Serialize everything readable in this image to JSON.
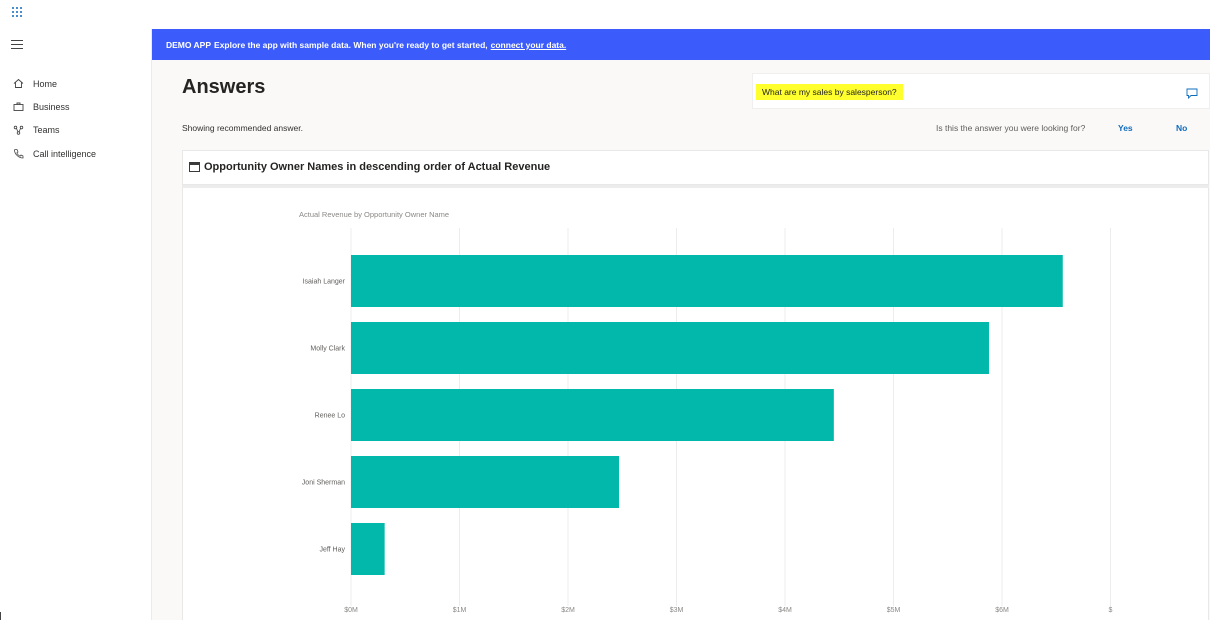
{
  "nav": {
    "items": [
      {
        "label": "Home",
        "icon": "home-icon"
      },
      {
        "label": "Business",
        "icon": "briefcase-icon"
      },
      {
        "label": "Teams",
        "icon": "teams-icon"
      },
      {
        "label": "Call intelligence",
        "icon": "phone-icon"
      }
    ]
  },
  "banner": {
    "tag": "DEMO APP",
    "message": "Explore the app with sample data. When you're ready to get started,",
    "link": "connect your data."
  },
  "page": {
    "title": "Answers",
    "question": "What are my sales by salesperson?",
    "showing": "Showing recommended answer.",
    "feedback_question": "Is this the answer you were looking for?",
    "yes": "Yes",
    "no": "No"
  },
  "visual": {
    "title": "Opportunity Owner Names in descending order of Actual Revenue"
  },
  "colors": {
    "accent": "#3b5bfa",
    "bar": "#01b8aa",
    "highlight": "#ffff2e",
    "link": "#0f6cbd"
  },
  "chart_data": {
    "type": "bar",
    "orientation": "horizontal",
    "title": "Actual Revenue by Opportunity Owner Name",
    "categories": [
      "Isaiah Langer",
      "Molly Clark",
      "Renee Lo",
      "Joni Sherman",
      "Jeff Hay"
    ],
    "values": [
      6560000,
      5880000,
      4450000,
      2470000,
      310000
    ],
    "xticks": [
      "$0M",
      "$1M",
      "$2M",
      "$3M",
      "$4M",
      "$5M",
      "$6M",
      "$"
    ],
    "xlim": [
      0,
      7000000
    ],
    "grid": true
  }
}
